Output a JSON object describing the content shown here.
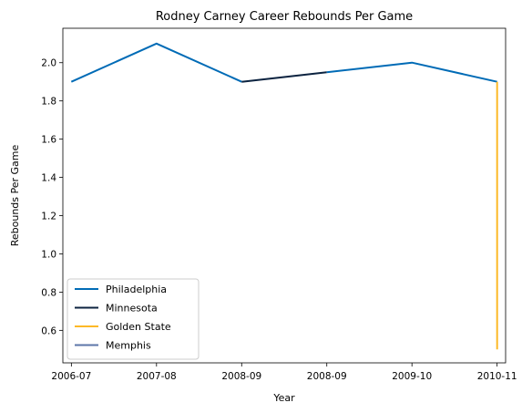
{
  "chart_data": {
    "type": "line",
    "title": "Rodney Carney Career Rebounds Per Game",
    "xlabel": "Year",
    "ylabel": "Rebounds Per Game",
    "x_tick_labels": [
      "2006-07",
      "2007-08",
      "2008-09",
      "2008-09",
      "2009-10",
      "2010-11"
    ],
    "y_ticks": [
      0.6,
      0.8,
      1.0,
      1.2,
      1.4,
      1.6,
      1.8,
      2.0
    ],
    "y_tick_labels": [
      "0.6",
      "0.8",
      "1.0",
      "1.2",
      "1.4",
      "1.6",
      "1.8",
      "2.0"
    ],
    "xlim": [
      -0.1,
      5.1
    ],
    "ylim": [
      0.43,
      2.18
    ],
    "grid": false,
    "legend_position": "lower-left",
    "series": [
      {
        "name": "Philadelphia",
        "color": "#006BB6",
        "x": [
          0,
          1,
          2
        ],
        "y": [
          1.9,
          2.1,
          1.9
        ]
      },
      {
        "name": "Minnesota",
        "color": "#0C2340",
        "x": [
          2,
          3
        ],
        "y": [
          1.9,
          1.95
        ]
      },
      {
        "name": "Philadelphia",
        "color": "#006BB6",
        "x": [
          3,
          4,
          5
        ],
        "y": [
          1.95,
          2.0,
          1.9
        ],
        "legend": false
      },
      {
        "name": "Golden State",
        "color": "#FDB927",
        "x": [
          5,
          5
        ],
        "y": [
          1.9,
          0.5
        ]
      },
      {
        "name": "Memphis",
        "color": "#5D76A9",
        "x": [],
        "y": []
      }
    ]
  }
}
